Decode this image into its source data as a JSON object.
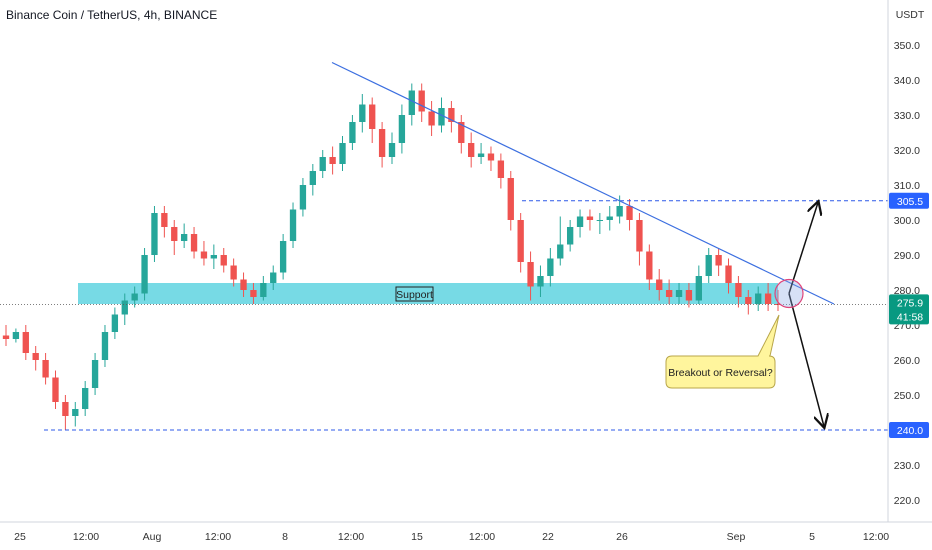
{
  "header": {
    "title": "Binance Coin / TetherUS, 4h, BINANCE"
  },
  "chart_data": {
    "type": "candlestick",
    "symbol": "Binance Coin / TetherUS",
    "interval": "4h",
    "exchange": "BINANCE",
    "y_axis_unit": "USDT",
    "y_ticks": [
      220.0,
      230.0,
      240.0,
      250.0,
      260.0,
      270.0,
      280.0,
      290.0,
      300.0,
      310.0,
      320.0,
      330.0,
      340.0,
      350.0
    ],
    "ylim": [
      214,
      357
    ],
    "x_ticks": [
      "25",
      "12:00",
      "Aug",
      "12:00",
      "8",
      "12:00",
      "15",
      "12:00",
      "22",
      "26",
      "Sep",
      "5",
      "12:00"
    ],
    "last_price": "275.9",
    "countdown": "41:58",
    "candles": [
      [
        267,
        266,
        270,
        264
      ],
      [
        266,
        268,
        269,
        265
      ],
      [
        268,
        262,
        270,
        260
      ],
      [
        262,
        260,
        264,
        257
      ],
      [
        260,
        255,
        262,
        253
      ],
      [
        255,
        248,
        257,
        246
      ],
      [
        248,
        244,
        250,
        240
      ],
      [
        244,
        246,
        248,
        241
      ],
      [
        246,
        252,
        254,
        244
      ],
      [
        252,
        260,
        262,
        250
      ],
      [
        260,
        268,
        270,
        258
      ],
      [
        268,
        273,
        275,
        266
      ],
      [
        273,
        277,
        279,
        270
      ],
      [
        277,
        279,
        281,
        275
      ],
      [
        279,
        290,
        292,
        277
      ],
      [
        290,
        302,
        304,
        288
      ],
      [
        302,
        298,
        304,
        295
      ],
      [
        298,
        294,
        300,
        290
      ],
      [
        294,
        296,
        299,
        292
      ],
      [
        296,
        291,
        298,
        289
      ],
      [
        291,
        289,
        294,
        287
      ],
      [
        289,
        290,
        293,
        286
      ],
      [
        290,
        287,
        292,
        285
      ],
      [
        287,
        283,
        289,
        281
      ],
      [
        283,
        280,
        285,
        278
      ],
      [
        280,
        278,
        282,
        276
      ],
      [
        278,
        282,
        284,
        277
      ],
      [
        282,
        285,
        287,
        280
      ],
      [
        285,
        294,
        296,
        283
      ],
      [
        294,
        303,
        305,
        292
      ],
      [
        303,
        310,
        312,
        301
      ],
      [
        310,
        314,
        316,
        307
      ],
      [
        314,
        318,
        320,
        312
      ],
      [
        318,
        316,
        321,
        313
      ],
      [
        316,
        322,
        324,
        314
      ],
      [
        322,
        328,
        330,
        320
      ],
      [
        328,
        333,
        336,
        325
      ],
      [
        333,
        326,
        335,
        322
      ],
      [
        326,
        318,
        328,
        315
      ],
      [
        318,
        322,
        325,
        316
      ],
      [
        322,
        330,
        333,
        319
      ],
      [
        330,
        337,
        339,
        327
      ],
      [
        337,
        331,
        339,
        328
      ],
      [
        331,
        327,
        334,
        324
      ],
      [
        327,
        332,
        335,
        325
      ],
      [
        332,
        328,
        334,
        325
      ],
      [
        328,
        322,
        330,
        319
      ],
      [
        322,
        318,
        325,
        315
      ],
      [
        318,
        319,
        322,
        316
      ],
      [
        319,
        317,
        321,
        314
      ],
      [
        317,
        312,
        319,
        309
      ],
      [
        312,
        300,
        314,
        297
      ],
      [
        300,
        288,
        302,
        285
      ],
      [
        288,
        281,
        291,
        277
      ],
      [
        281,
        284,
        287,
        278
      ],
      [
        284,
        289,
        292,
        281
      ],
      [
        289,
        293,
        301,
        287
      ],
      [
        293,
        298,
        300,
        291
      ],
      [
        298,
        301,
        303,
        295
      ],
      [
        301,
        300,
        303,
        297
      ],
      [
        300,
        300,
        302,
        296
      ],
      [
        300,
        301,
        304,
        297
      ],
      [
        301,
        304,
        307,
        299
      ],
      [
        304,
        300,
        306,
        297
      ],
      [
        300,
        291,
        302,
        287
      ],
      [
        291,
        283,
        293,
        280
      ],
      [
        283,
        280,
        286,
        277
      ],
      [
        280,
        278,
        283,
        276
      ],
      [
        278,
        280,
        282,
        276
      ],
      [
        280,
        277,
        282,
        275
      ],
      [
        277,
        284,
        287,
        276
      ],
      [
        284,
        290,
        292,
        282
      ],
      [
        290,
        287,
        292,
        284
      ],
      [
        287,
        282,
        289,
        279
      ],
      [
        282,
        278,
        284,
        275
      ],
      [
        278,
        276,
        280,
        273
      ],
      [
        276,
        279,
        281,
        274
      ],
      [
        279,
        276,
        282,
        274
      ],
      [
        276,
        275.9,
        280,
        274
      ]
    ],
    "support_zone": {
      "label": "Support",
      "low": 276,
      "high": 282
    },
    "resistance_line": {
      "label": "305.5",
      "value": 305.5
    },
    "support_line": {
      "label": "240.0",
      "value": 240.0
    },
    "trendline": {
      "from": [
        332,
        345
      ],
      "to": [
        834,
        276
      ]
    },
    "annotation": "Breakout or Reversal?"
  },
  "colors": {
    "up": "#26a69a",
    "down": "#ef5350",
    "trendline": "#3c6fe0",
    "zone": "#5fd3e0",
    "dashed": "#2d58e8",
    "price_tag": "#089981",
    "tag_blue": "#2962ff"
  }
}
